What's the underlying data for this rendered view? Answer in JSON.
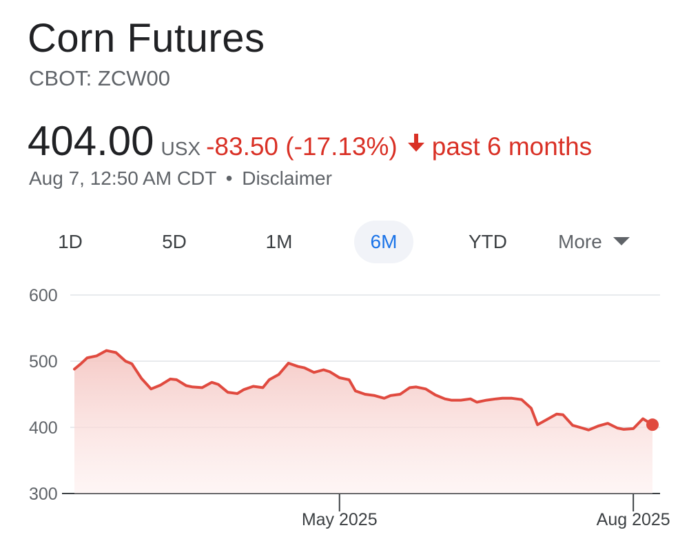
{
  "header": {
    "title": "Corn Futures",
    "ticker": "CBOT: ZCW00"
  },
  "quote": {
    "price": "404.00",
    "currency": "USX",
    "change": "-83.50 (-17.13%)",
    "direction_icon": "arrow-down-icon",
    "period": "past 6 months",
    "timestamp": "Aug 7, 12:50 AM CDT",
    "separator": "•",
    "disclaimer": "Disclaimer"
  },
  "tabs": [
    {
      "label": "1D",
      "active": false
    },
    {
      "label": "5D",
      "active": false
    },
    {
      "label": "1M",
      "active": false
    },
    {
      "label": "6M",
      "active": true
    },
    {
      "label": "YTD",
      "active": false
    }
  ],
  "more_label": "More",
  "colors": {
    "negative": "#d93025",
    "active_tab": "#1a73e8",
    "line": "#e04a3f"
  },
  "chart_data": {
    "type": "area",
    "yticks": [
      600,
      500,
      400,
      300
    ],
    "ylim": [
      300,
      600
    ],
    "xticks": [
      {
        "label": "May 2025",
        "date": "2025-05-01"
      },
      {
        "label": "Aug 2025",
        "date": "2025-08-01"
      }
    ],
    "x": [
      "2025-02-07",
      "2025-02-09",
      "2025-02-11",
      "2025-02-14",
      "2025-02-17",
      "2025-02-20",
      "2025-02-23",
      "2025-02-25",
      "2025-02-28",
      "2025-03-03",
      "2025-03-06",
      "2025-03-09",
      "2025-03-11",
      "2025-03-14",
      "2025-03-16",
      "2025-03-19",
      "2025-03-22",
      "2025-03-24",
      "2025-03-27",
      "2025-03-30",
      "2025-04-01",
      "2025-04-04",
      "2025-04-07",
      "2025-04-09",
      "2025-04-12",
      "2025-04-15",
      "2025-04-18",
      "2025-04-20",
      "2025-04-23",
      "2025-04-26",
      "2025-04-28",
      "2025-05-01",
      "2025-05-04",
      "2025-05-06",
      "2025-05-09",
      "2025-05-12",
      "2025-05-15",
      "2025-05-17",
      "2025-05-20",
      "2025-05-23",
      "2025-05-25",
      "2025-05-28",
      "2025-05-31",
      "2025-06-03",
      "2025-06-05",
      "2025-06-08",
      "2025-06-11",
      "2025-06-13",
      "2025-06-16",
      "2025-06-19",
      "2025-06-21",
      "2025-06-24",
      "2025-06-27",
      "2025-06-30",
      "2025-07-02",
      "2025-07-05",
      "2025-07-08",
      "2025-07-10",
      "2025-07-13",
      "2025-07-16",
      "2025-07-18",
      "2025-07-21",
      "2025-07-24",
      "2025-07-27",
      "2025-07-29",
      "2025-08-01",
      "2025-08-04",
      "2025-08-07"
    ],
    "values": [
      488,
      496,
      505,
      508,
      516,
      513,
      500,
      496,
      474,
      458,
      464,
      473,
      472,
      463,
      461,
      460,
      468,
      465,
      453,
      451,
      457,
      462,
      460,
      472,
      480,
      497,
      492,
      490,
      483,
      487,
      484,
      475,
      472,
      455,
      450,
      448,
      444,
      448,
      450,
      460,
      461,
      458,
      449,
      443,
      441,
      441,
      443,
      438,
      441,
      443,
      444,
      444,
      442,
      429,
      404,
      412,
      420,
      419,
      403,
      399,
      396,
      402,
      406,
      399,
      397,
      398,
      413,
      404
    ],
    "last_point": 404
  }
}
